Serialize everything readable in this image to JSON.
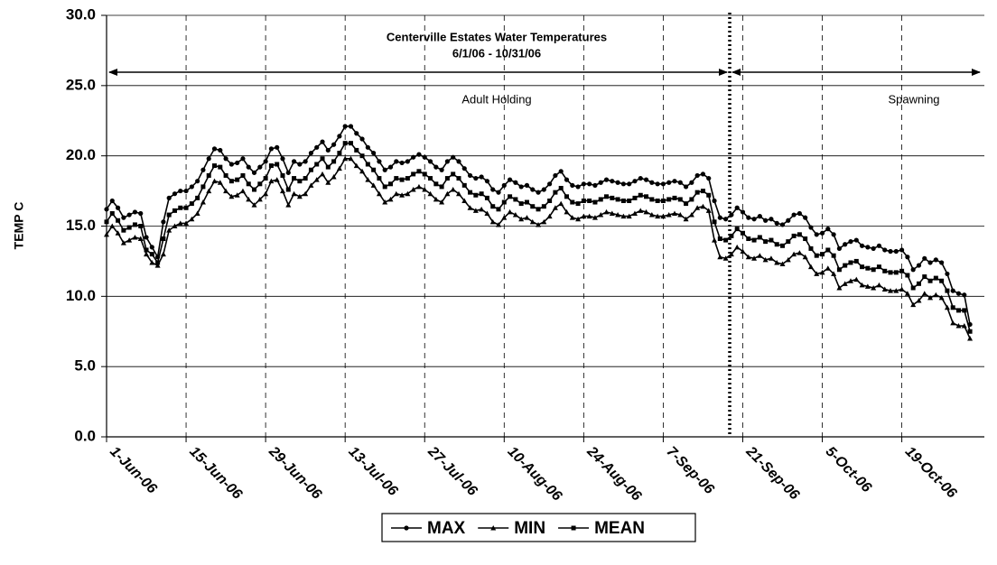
{
  "chart_data": {
    "type": "line",
    "title": "Centerville Estates  Water Temperatures",
    "subtitle": "6/1/06 - 10/31/06",
    "y_label": "TEMP C",
    "annotations": [
      "Adult Holding",
      "Spawning"
    ],
    "grid": true,
    "legend": "bottom",
    "ylim": [
      0,
      30
    ],
    "yticks": [
      {
        "value": 0,
        "label": "0.0"
      },
      {
        "value": 5,
        "label": "5.0"
      },
      {
        "value": 10,
        "label": "10.0"
      },
      {
        "value": 15,
        "label": "15.0"
      },
      {
        "value": 20,
        "label": "20.0"
      },
      {
        "value": 25,
        "label": "25.0"
      },
      {
        "value": 30,
        "label": "30.0"
      }
    ],
    "categories": [
      "1-Jun-06",
      null,
      null,
      null,
      null,
      null,
      null,
      null,
      null,
      null,
      null,
      null,
      null,
      null,
      "15-Jun-06",
      null,
      null,
      null,
      null,
      null,
      null,
      null,
      null,
      null,
      null,
      null,
      null,
      null,
      "29-Jun-06",
      null,
      null,
      null,
      null,
      null,
      null,
      null,
      null,
      null,
      null,
      null,
      null,
      null,
      "13-Jul-06",
      null,
      null,
      null,
      null,
      null,
      null,
      null,
      null,
      null,
      null,
      null,
      null,
      null,
      "27-Jul-06",
      null,
      null,
      null,
      null,
      null,
      null,
      null,
      null,
      null,
      null,
      null,
      null,
      null,
      "10-Aug-06",
      null,
      null,
      null,
      null,
      null,
      null,
      null,
      null,
      null,
      null,
      null,
      null,
      null,
      "24-Aug-06",
      null,
      null,
      null,
      null,
      null,
      null,
      null,
      null,
      null,
      null,
      null,
      null,
      null,
      "7-Sep-06",
      null,
      null,
      null,
      null,
      null,
      null,
      null,
      null,
      null,
      null,
      null,
      null,
      null,
      "21-Sep-06",
      null,
      null,
      null,
      null,
      null,
      null,
      null,
      null,
      null,
      null,
      null,
      null,
      null,
      "5-Oct-06",
      null,
      null,
      null,
      null,
      null,
      null,
      null,
      null,
      null,
      null,
      null,
      null,
      null,
      "19-Oct-06",
      null,
      null,
      null,
      null,
      null,
      null,
      null,
      null,
      null,
      null,
      null,
      null
    ],
    "series": [
      {
        "name": "MAX",
        "color": "#000000",
        "marker": "circle",
        "values": [
          16.2,
          16.8,
          16.3,
          15.6,
          15.8,
          16.0,
          15.9,
          14.2,
          13.5,
          12.8,
          15.3,
          17.0,
          17.3,
          17.5,
          17.5,
          17.8,
          18.2,
          19.0,
          19.8,
          20.5,
          20.4,
          19.8,
          19.4,
          19.5,
          19.8,
          19.2,
          18.8,
          19.2,
          19.6,
          20.5,
          20.6,
          19.8,
          18.8,
          19.6,
          19.4,
          19.6,
          20.2,
          20.6,
          21.0,
          20.4,
          20.8,
          21.4,
          22.1,
          22.1,
          21.6,
          21.2,
          20.6,
          20.2,
          19.6,
          19.0,
          19.2,
          19.6,
          19.5,
          19.6,
          19.9,
          20.1,
          19.9,
          19.6,
          19.2,
          19.0,
          19.6,
          19.9,
          19.6,
          19.1,
          18.6,
          18.4,
          18.5,
          18.2,
          17.6,
          17.4,
          17.9,
          18.3,
          18.1,
          17.8,
          17.9,
          17.6,
          17.4,
          17.6,
          18.0,
          18.6,
          18.9,
          18.3,
          17.9,
          17.8,
          18.0,
          18.0,
          17.9,
          18.1,
          18.3,
          18.2,
          18.1,
          18.0,
          18.0,
          18.2,
          18.4,
          18.3,
          18.1,
          18.0,
          18.0,
          18.1,
          18.2,
          18.1,
          17.8,
          18.1,
          18.6,
          18.7,
          18.4,
          16.8,
          15.6,
          15.5,
          15.8,
          16.3,
          16.0,
          15.6,
          15.5,
          15.7,
          15.4,
          15.5,
          15.2,
          15.1,
          15.4,
          15.8,
          15.9,
          15.6,
          14.9,
          14.4,
          14.5,
          14.8,
          14.4,
          13.4,
          13.7,
          13.9,
          14.0,
          13.6,
          13.5,
          13.4,
          13.6,
          13.3,
          13.2,
          13.2,
          13.3,
          12.8,
          11.9,
          12.2,
          12.7,
          12.4,
          12.6,
          12.4,
          11.6,
          10.4,
          10.2,
          10.1,
          8.0
        ]
      },
      {
        "name": "MIN",
        "color": "#000000",
        "marker": "triangle",
        "values": [
          14.4,
          15.0,
          14.5,
          13.8,
          14.0,
          14.2,
          14.1,
          13.0,
          12.4,
          12.2,
          13.0,
          14.7,
          15.0,
          15.2,
          15.2,
          15.5,
          15.9,
          16.7,
          17.5,
          18.2,
          18.1,
          17.5,
          17.1,
          17.2,
          17.5,
          16.9,
          16.5,
          16.9,
          17.3,
          18.2,
          18.3,
          17.5,
          16.5,
          17.3,
          17.1,
          17.3,
          17.9,
          18.3,
          18.7,
          18.1,
          18.5,
          19.1,
          19.8,
          19.8,
          19.3,
          18.9,
          18.3,
          17.9,
          17.3,
          16.7,
          16.9,
          17.3,
          17.2,
          17.3,
          17.6,
          17.8,
          17.6,
          17.3,
          16.9,
          16.7,
          17.3,
          17.6,
          17.3,
          16.8,
          16.3,
          16.1,
          16.2,
          15.9,
          15.3,
          15.1,
          15.6,
          16.0,
          15.8,
          15.5,
          15.6,
          15.3,
          15.1,
          15.3,
          15.7,
          16.3,
          16.6,
          16.0,
          15.6,
          15.5,
          15.7,
          15.7,
          15.6,
          15.8,
          16.0,
          15.9,
          15.8,
          15.7,
          15.7,
          15.9,
          16.1,
          16.0,
          15.8,
          15.7,
          15.7,
          15.8,
          15.9,
          15.8,
          15.5,
          15.8,
          16.3,
          16.4,
          16.1,
          14.0,
          12.8,
          12.7,
          13.0,
          13.5,
          13.2,
          12.8,
          12.7,
          12.9,
          12.6,
          12.7,
          12.4,
          12.3,
          12.6,
          13.0,
          13.1,
          12.8,
          12.1,
          11.6,
          11.7,
          12.0,
          11.6,
          10.6,
          10.9,
          11.1,
          11.2,
          10.8,
          10.7,
          10.6,
          10.8,
          10.5,
          10.4,
          10.4,
          10.5,
          10.2,
          9.4,
          9.7,
          10.2,
          9.9,
          10.1,
          9.9,
          9.2,
          8.1,
          7.9,
          7.9,
          7.0
        ]
      },
      {
        "name": "MEAN",
        "color": "#000000",
        "marker": "square",
        "values": [
          15.3,
          15.9,
          15.4,
          14.7,
          14.9,
          15.1,
          15.0,
          13.3,
          13.0,
          12.4,
          14.1,
          15.8,
          16.1,
          16.3,
          16.3,
          16.6,
          17.0,
          17.8,
          18.6,
          19.3,
          19.2,
          18.6,
          18.2,
          18.3,
          18.6,
          18.0,
          17.6,
          18.0,
          18.4,
          19.3,
          19.4,
          18.6,
          17.6,
          18.4,
          18.2,
          18.4,
          19.0,
          19.4,
          19.8,
          19.2,
          19.6,
          20.2,
          20.9,
          20.9,
          20.4,
          20.0,
          19.4,
          19.0,
          18.4,
          17.8,
          18.0,
          18.4,
          18.3,
          18.4,
          18.7,
          18.9,
          18.7,
          18.4,
          18.0,
          17.8,
          18.4,
          18.7,
          18.4,
          17.9,
          17.4,
          17.2,
          17.3,
          17.0,
          16.4,
          16.2,
          16.7,
          17.1,
          16.9,
          16.6,
          16.7,
          16.4,
          16.2,
          16.4,
          16.8,
          17.4,
          17.7,
          17.1,
          16.7,
          16.6,
          16.8,
          16.8,
          16.7,
          16.9,
          17.1,
          17.0,
          16.9,
          16.8,
          16.8,
          17.0,
          17.2,
          17.1,
          16.9,
          16.8,
          16.8,
          16.9,
          17.0,
          16.9,
          16.6,
          16.9,
          17.4,
          17.5,
          17.2,
          15.3,
          14.1,
          14.0,
          14.3,
          14.8,
          14.5,
          14.1,
          14.0,
          14.2,
          13.9,
          14.0,
          13.7,
          13.6,
          13.9,
          14.3,
          14.4,
          14.1,
          13.4,
          12.9,
          13.0,
          13.3,
          12.9,
          11.9,
          12.2,
          12.4,
          12.5,
          12.1,
          12.0,
          11.9,
          12.1,
          11.8,
          11.7,
          11.7,
          11.8,
          11.5,
          10.6,
          10.9,
          11.4,
          11.1,
          11.3,
          11.1,
          10.4,
          9.2,
          9.0,
          9.0,
          7.5
        ]
      }
    ]
  }
}
